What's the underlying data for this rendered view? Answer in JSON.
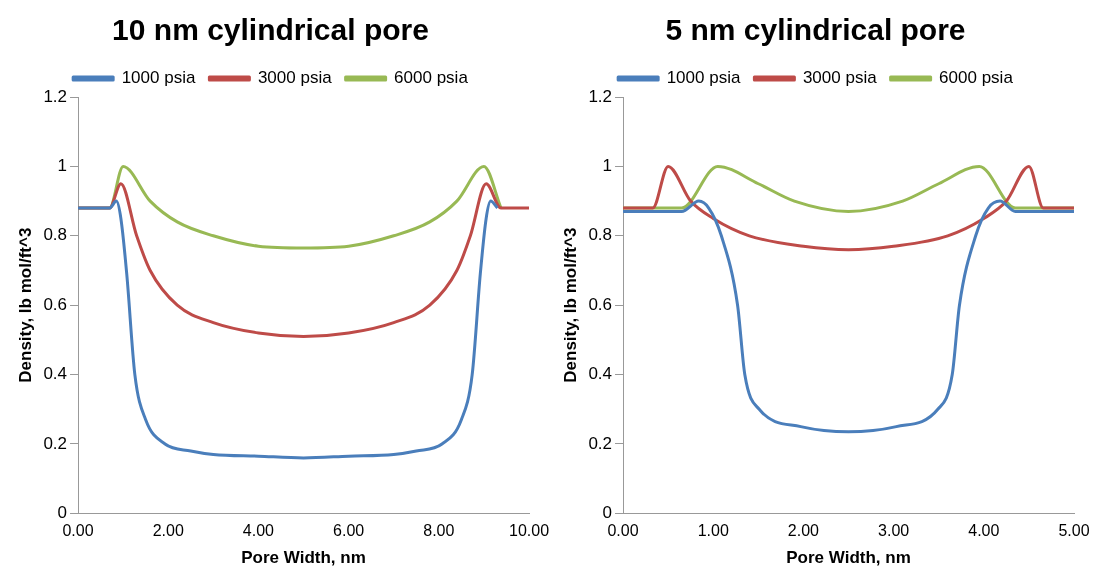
{
  "chart_data": [
    {
      "type": "line",
      "title": "10 nm cylindrical pore",
      "xlabel": "Pore Width, nm",
      "ylabel": "Density, lb mol/ft^3",
      "xlim": [
        0,
        10
      ],
      "ylim": [
        0,
        1.2
      ],
      "xticks": [
        {
          "value": 0,
          "label": "0.00"
        },
        {
          "value": 2,
          "label": "2.00"
        },
        {
          "value": 4,
          "label": "4.00"
        },
        {
          "value": 6,
          "label": "6.00"
        },
        {
          "value": 8,
          "label": "8.00"
        },
        {
          "value": 10,
          "label": "10.00"
        }
      ],
      "yticks": [
        0,
        0.2,
        0.4,
        0.6,
        0.8,
        1,
        1.2
      ],
      "grid": false,
      "legend": "top",
      "marker": "none",
      "line_style": "solid",
      "series": [
        {
          "name": "1000 psia",
          "color": "#4a7ebb",
          "x": [
            0,
            0.7,
            0.85,
            0.95,
            1.08,
            1.26,
            1.5,
            1.93,
            2.5,
            3,
            4,
            5,
            6,
            7,
            7.5,
            8.07,
            8.5,
            8.74,
            8.92,
            9.05,
            9.15,
            9.3
          ],
          "values": [
            0.88,
            0.88,
            0.9,
            0.85,
            0.69,
            0.4,
            0.27,
            0.2,
            0.18,
            0.17,
            0.165,
            0.16,
            0.165,
            0.17,
            0.18,
            0.2,
            0.27,
            0.4,
            0.69,
            0.85,
            0.9,
            0.88
          ]
        },
        {
          "name": "3000 psia",
          "color": "#be4b48",
          "x": [
            0,
            0.7,
            0.95,
            1.3,
            1.6,
            2.2,
            3,
            4,
            5,
            6,
            7,
            7.8,
            8.4,
            8.7,
            9.05,
            9.38,
            10
          ],
          "values": [
            0.88,
            0.88,
            0.95,
            0.8,
            0.7,
            0.6,
            0.55,
            0.52,
            0.51,
            0.52,
            0.55,
            0.6,
            0.7,
            0.8,
            0.95,
            0.88,
            0.88
          ]
        },
        {
          "name": "6000 psia",
          "color": "#98b954",
          "x": [
            0,
            0.7,
            1,
            1.6,
            2.2,
            3,
            4,
            5,
            6,
            7,
            7.8,
            8.4,
            9,
            9.38
          ],
          "values": [
            0.88,
            0.88,
            1,
            0.9,
            0.84,
            0.8,
            0.77,
            0.765,
            0.77,
            0.8,
            0.84,
            0.9,
            1,
            0.88
          ]
        }
      ]
    },
    {
      "type": "line",
      "title": "5 nm cylindrical pore",
      "xlabel": "Pore Width, nm",
      "ylabel": "Density, lb mol/ft^3",
      "xlim": [
        0,
        5
      ],
      "ylim": [
        0,
        1.2
      ],
      "xticks": [
        {
          "value": 0,
          "label": "0.00"
        },
        {
          "value": 1,
          "label": "1.00"
        },
        {
          "value": 2,
          "label": "2.00"
        },
        {
          "value": 3,
          "label": "3.00"
        },
        {
          "value": 4,
          "label": "4.00"
        },
        {
          "value": 5,
          "label": "5.00"
        }
      ],
      "yticks": [
        0,
        0.2,
        0.4,
        0.6,
        0.8,
        1,
        1.2
      ],
      "grid": false,
      "legend": "top",
      "marker": "none",
      "line_style": "solid",
      "series": [
        {
          "name": "1000 psia",
          "color": "#4a7ebb",
          "x": [
            0,
            0.65,
            0.84,
            0.95,
            1.09,
            1.27,
            1.35,
            1.51,
            1.97,
            2.5,
            3.03,
            3.49,
            3.65,
            3.73,
            3.91,
            4.05,
            4.18,
            4.35,
            5
          ],
          "values": [
            0.87,
            0.87,
            0.9,
            0.88,
            0.8,
            0.6,
            0.4,
            0.3,
            0.25,
            0.235,
            0.25,
            0.3,
            0.4,
            0.6,
            0.8,
            0.88,
            0.9,
            0.87,
            0.87
          ]
        },
        {
          "name": "3000 psia",
          "color": "#be4b48",
          "x": [
            0,
            0.33,
            0.5,
            0.75,
            1,
            1.4,
            2,
            2.5,
            3,
            3.6,
            4,
            4.25,
            4.5,
            4.66,
            5
          ],
          "values": [
            0.88,
            0.88,
            1,
            0.9,
            0.85,
            0.8,
            0.77,
            0.76,
            0.77,
            0.8,
            0.85,
            0.9,
            1,
            0.88,
            0.88
          ]
        },
        {
          "name": "6000 psia",
          "color": "#98b954",
          "x": [
            0,
            0.65,
            1.05,
            1.5,
            1.9,
            2.5,
            3.1,
            3.5,
            3.95,
            4.35,
            5
          ],
          "values": [
            0.88,
            0.88,
            1,
            0.95,
            0.9,
            0.87,
            0.9,
            0.95,
            1,
            0.88,
            0.88
          ]
        }
      ]
    }
  ]
}
